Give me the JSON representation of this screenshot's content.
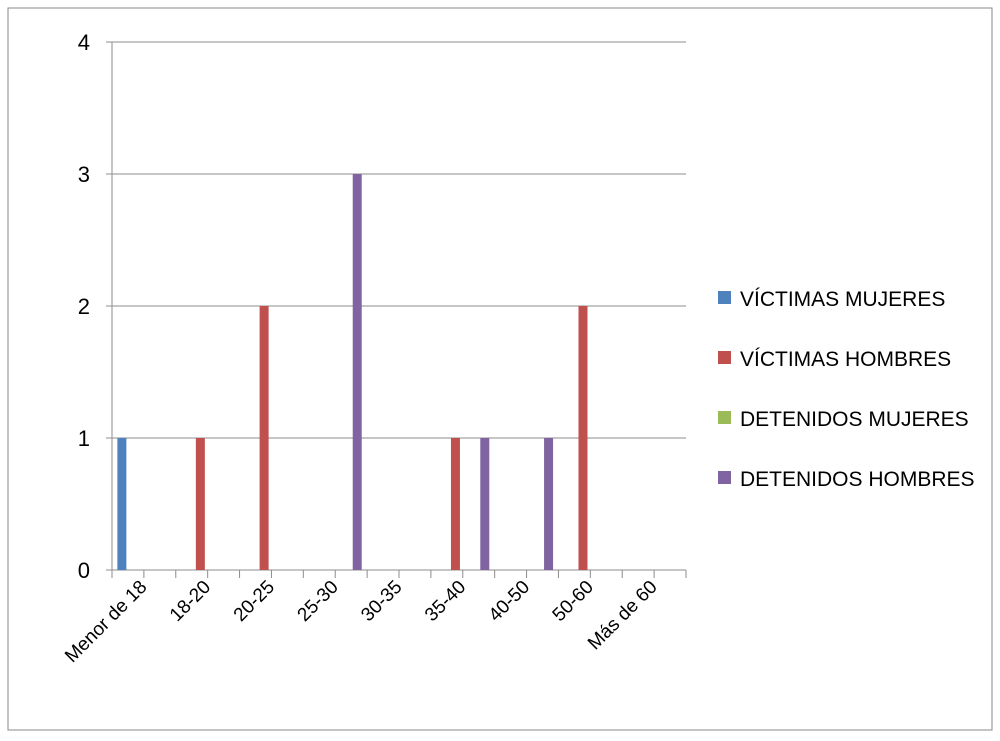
{
  "chart_data": {
    "type": "bar",
    "categories": [
      "Menor de 18",
      "18-20",
      "20-25",
      "25-30",
      "30-35",
      "35-40",
      "40-50",
      "50-60",
      "Más de 60"
    ],
    "series": [
      {
        "name": "VÍCTIMAS MUJERES",
        "color": "#4f81bd",
        "values": [
          1,
          0,
          0,
          0,
          0,
          0,
          0,
          0,
          0
        ]
      },
      {
        "name": "VÍCTIMAS HOMBRES",
        "color": "#c0504d",
        "values": [
          0,
          1,
          2,
          0,
          0,
          1,
          0,
          2,
          0
        ]
      },
      {
        "name": "DETENIDOS MUJERES",
        "color": "#9bbb59",
        "values": [
          0,
          0,
          0,
          0,
          0,
          0,
          0,
          0,
          0
        ]
      },
      {
        "name": "DETENIDOS HOMBRES",
        "color": "#8064a2",
        "values": [
          0,
          0,
          0,
          3,
          0,
          1,
          1,
          0,
          0
        ]
      }
    ],
    "yticks": [
      "0",
      "1",
      "2",
      "3",
      "4"
    ],
    "ylim": [
      0,
      4
    ],
    "title": "",
    "xlabel": "",
    "ylabel": "",
    "grid": true,
    "legend_position": "right"
  }
}
